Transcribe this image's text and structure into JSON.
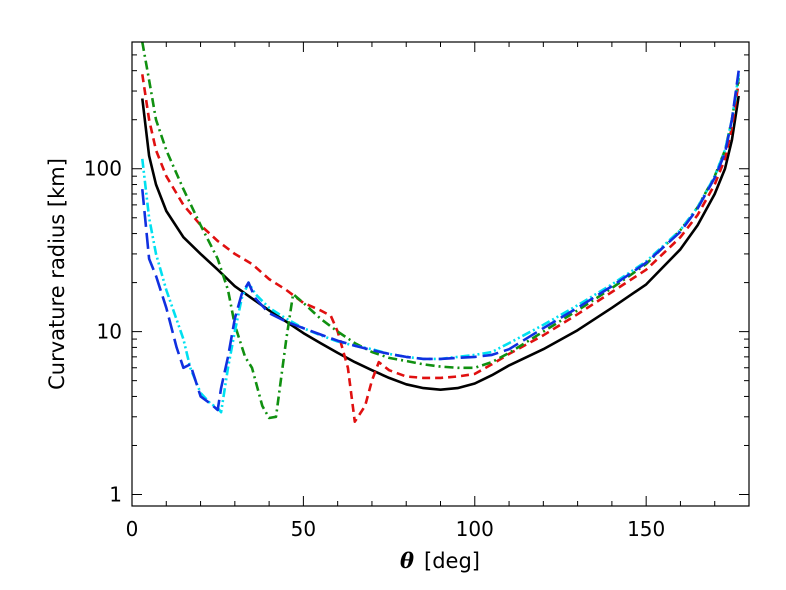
{
  "chart_data": {
    "type": "line",
    "xlabel_symbol": "θ",
    "xlabel_unit": "[deg]",
    "ylabel": "Curvature radius [km]",
    "xlim": [
      0,
      180
    ],
    "ylim": [
      0.85,
      600
    ],
    "yscale": "log",
    "x_ticks": [
      0,
      50,
      100,
      150
    ],
    "x_tick_labels": [
      "0",
      "50",
      "100",
      "150"
    ],
    "y_ticks": [
      1,
      10,
      100
    ],
    "y_tick_labels": [
      "1",
      "10",
      "100"
    ],
    "grid": false,
    "series": [
      {
        "color": "#000000",
        "dash": "solid",
        "x": [
          3,
          5,
          7,
          10,
          15,
          20,
          25,
          30,
          35,
          40,
          45,
          50,
          55,
          60,
          65,
          70,
          75,
          80,
          85,
          90,
          95,
          100,
          105,
          110,
          120,
          130,
          140,
          150,
          160,
          165,
          170,
          173,
          175,
          177
        ],
        "y": [
          270,
          120,
          80,
          55,
          38,
          30,
          24,
          19,
          16,
          13.5,
          11.5,
          9.8,
          8.5,
          7.4,
          6.5,
          5.8,
          5.2,
          4.75,
          4.5,
          4.4,
          4.5,
          4.8,
          5.4,
          6.2,
          7.8,
          10.2,
          14,
          19.5,
          32,
          45,
          70,
          100,
          150,
          280
        ]
      },
      {
        "color": "#e01010",
        "dash": "dashed",
        "x": [
          3,
          5,
          7,
          10,
          15,
          20,
          25,
          30,
          35,
          40,
          45,
          50,
          55,
          58,
          60,
          63,
          65,
          68,
          70,
          72,
          75,
          80,
          85,
          90,
          95,
          100,
          105,
          110,
          120,
          130,
          140,
          150,
          160,
          165,
          170,
          173,
          175,
          177
        ],
        "y": [
          380,
          200,
          130,
          90,
          60,
          45,
          36,
          30,
          26,
          21,
          18,
          15,
          13.5,
          12.5,
          10,
          6,
          2.8,
          3.5,
          5,
          6.5,
          5.8,
          5.3,
          5.2,
          5.2,
          5.3,
          5.5,
          6.3,
          7.3,
          9.5,
          12.8,
          17.5,
          24,
          38,
          52,
          80,
          115,
          180,
          340
        ]
      },
      {
        "color": "#109010",
        "dash": "dashdot",
        "x": [
          3,
          5,
          7,
          10,
          15,
          20,
          25,
          28,
          30,
          33,
          35,
          38,
          40,
          42,
          45,
          47,
          50,
          55,
          60,
          65,
          70,
          75,
          80,
          85,
          90,
          95,
          100,
          105,
          110,
          120,
          130,
          140,
          150,
          160,
          165,
          170,
          173,
          175,
          177
        ],
        "y": [
          600,
          350,
          200,
          130,
          75,
          45,
          28,
          18,
          11,
          7,
          6,
          3.5,
          2.95,
          3,
          9,
          17,
          15,
          12,
          10,
          8.5,
          7.5,
          6.9,
          6.6,
          6.3,
          6.1,
          6.0,
          6.0,
          6.5,
          7.4,
          10,
          13.5,
          18.5,
          26,
          42,
          58,
          90,
          130,
          200,
          360
        ]
      },
      {
        "color": "#00e0f0",
        "dash": "dashdotdot",
        "x": [
          3,
          5,
          7,
          10,
          15,
          17,
          20,
          23,
          25,
          26,
          28,
          30,
          32,
          34,
          36,
          40,
          45,
          50,
          55,
          60,
          65,
          70,
          75,
          80,
          85,
          90,
          95,
          100,
          105,
          110,
          120,
          130,
          140,
          150,
          160,
          165,
          170,
          173,
          175,
          177
        ],
        "y": [
          115,
          50,
          30,
          18,
          9,
          6,
          4.2,
          3.6,
          3.4,
          3.2,
          6,
          10,
          16,
          20,
          17,
          14,
          12,
          10.5,
          9.5,
          8.7,
          8.2,
          7.8,
          7.3,
          7,
          6.8,
          6.8,
          7,
          7.2,
          7.5,
          8.5,
          11,
          14.5,
          19.5,
          27,
          42,
          58,
          90,
          130,
          200,
          380
        ]
      },
      {
        "color": "#1030e0",
        "dash": "longdash",
        "x": [
          3,
          5,
          7,
          10,
          13,
          15,
          17,
          20,
          23,
          25,
          26,
          28,
          30,
          32,
          34,
          36,
          40,
          45,
          50,
          55,
          60,
          65,
          70,
          75,
          80,
          85,
          90,
          95,
          100,
          105,
          110,
          120,
          130,
          140,
          150,
          160,
          165,
          170,
          173,
          175,
          177
        ],
        "y": [
          75,
          28,
          22,
          14,
          8,
          6,
          6.3,
          4,
          3.6,
          3.3,
          4.5,
          7,
          12,
          17,
          20,
          16,
          13,
          11.5,
          10.5,
          9.6,
          8.8,
          8.2,
          7.7,
          7.3,
          7,
          6.8,
          6.8,
          6.9,
          7.0,
          7.2,
          7.8,
          10.5,
          14,
          19,
          26.5,
          41,
          57,
          88,
          125,
          200,
          400
        ]
      }
    ]
  }
}
